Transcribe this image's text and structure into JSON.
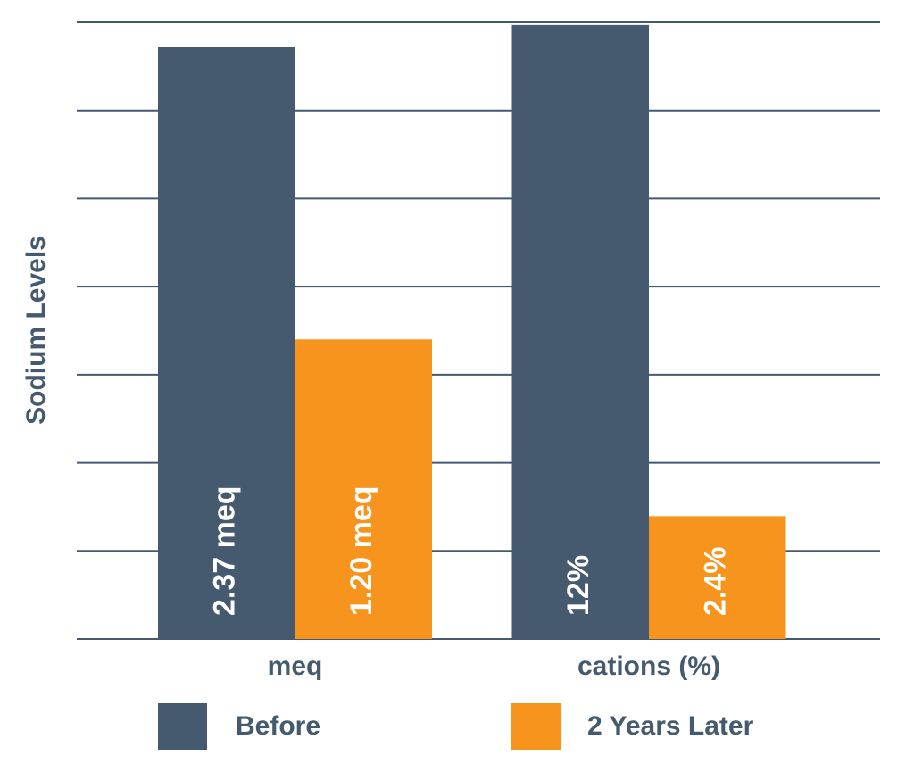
{
  "chart_data": [
    {
      "type": "bar",
      "y_label": "Sodium Levels",
      "categories": [
        "meq"
      ],
      "series": [
        {
          "name": "Before",
          "color": "#455a6f",
          "values": [
            2.37
          ],
          "value_labels": [
            "2.37 meq"
          ]
        },
        {
          "name": "2 Years Later",
          "color": "#f7941d",
          "values": [
            1.2
          ],
          "value_labels": [
            "1.20 meq"
          ]
        }
      ],
      "ylim": [
        0,
        2.47
      ]
    },
    {
      "type": "bar",
      "categories": [
        "cations (%)"
      ],
      "series": [
        {
          "color": "#455a6f",
          "values": [
            12
          ],
          "value_labels": [
            "12%"
          ]
        },
        {
          "color": "#f7941d",
          "values": [
            2.4
          ],
          "value_labels": [
            "2.4%"
          ]
        }
      ],
      "ylim": [
        0,
        12.05
      ]
    }
  ]
}
